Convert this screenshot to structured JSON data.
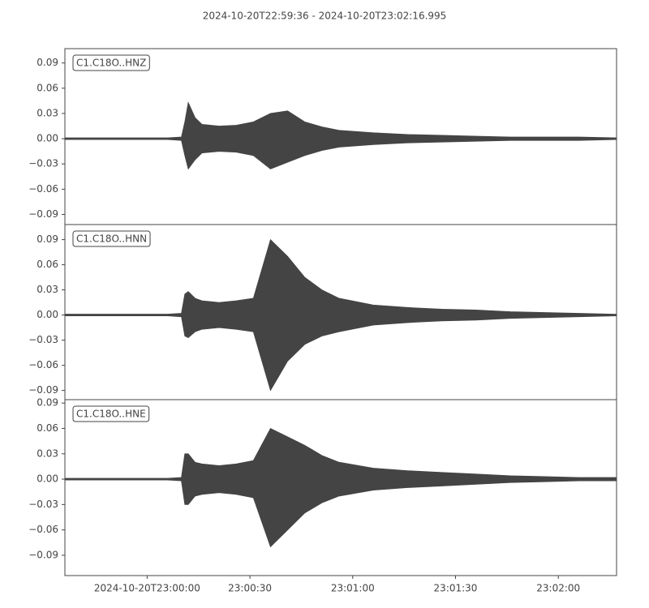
{
  "chart_data": [
    {
      "type": "band",
      "title": "2024-10-20T22:59:36  -  2024-10-20T23:02:16.995",
      "x": [
        "2024-10-20T22:59:36",
        "2024-10-20T23:00:06",
        "2024-10-20T23:00:10",
        "2024-10-20T23:00:11",
        "2024-10-20T23:00:12",
        "2024-10-20T23:00:14",
        "2024-10-20T23:00:16",
        "2024-10-20T23:00:21",
        "2024-10-20T23:00:26",
        "2024-10-20T23:00:31",
        "2024-10-20T23:00:36",
        "2024-10-20T23:00:41",
        "2024-10-20T23:00:46",
        "2024-10-20T23:00:51",
        "2024-10-20T23:00:56",
        "2024-10-20T23:01:06",
        "2024-10-20T23:01:16",
        "2024-10-20T23:01:26",
        "2024-10-20T23:01:36",
        "2024-10-20T23:01:46",
        "2024-10-20T23:01:56",
        "2024-10-20T23:02:06",
        "2024-10-20T23:02:16.995"
      ],
      "series": [
        {
          "name": "C1.C18O..HNZ",
          "color": "#444444",
          "values": [
            0.001,
            0.001,
            0.002,
            0.02,
            0.043,
            0.025,
            0.017,
            0.015,
            0.016,
            0.02,
            0.03,
            0.033,
            0.02,
            0.014,
            0.01,
            0.007,
            0.005,
            0.004,
            0.003,
            0.002,
            0.002,
            0.002,
            0.001
          ],
          "lower": [
            -0.001,
            -0.001,
            -0.002,
            -0.02,
            -0.036,
            -0.025,
            -0.017,
            -0.015,
            -0.016,
            -0.02,
            -0.036,
            -0.028,
            -0.02,
            -0.014,
            -0.01,
            -0.007,
            -0.005,
            -0.004,
            -0.003,
            -0.002,
            -0.002,
            -0.002,
            -0.001
          ]
        }
      ],
      "xlim": [
        "2024-10-20T22:59:36",
        "2024-10-20T23:02:16.995"
      ],
      "ylim": [
        -0.102,
        0.107
      ],
      "yticks": [
        0.09,
        0.06,
        0.03,
        {
          "value": 0,
          "label": "0.00"
        },
        {
          "value": -0.03,
          "label": "−0.03"
        },
        {
          "value": -0.06,
          "label": "−0.06"
        },
        {
          "value": -0.09,
          "label": "−0.09"
        }
      ]
    },
    {
      "type": "band",
      "x": [
        "2024-10-20T22:59:36",
        "2024-10-20T23:00:06",
        "2024-10-20T23:00:10",
        "2024-10-20T23:00:11",
        "2024-10-20T23:00:12",
        "2024-10-20T23:00:14",
        "2024-10-20T23:00:16",
        "2024-10-20T23:00:21",
        "2024-10-20T23:00:26",
        "2024-10-20T23:00:31",
        "2024-10-20T23:00:36",
        "2024-10-20T23:00:41",
        "2024-10-20T23:00:46",
        "2024-10-20T23:00:51",
        "2024-10-20T23:00:56",
        "2024-10-20T23:01:06",
        "2024-10-20T23:01:16",
        "2024-10-20T23:01:26",
        "2024-10-20T23:01:36",
        "2024-10-20T23:01:46",
        "2024-10-20T23:01:56",
        "2024-10-20T23:02:06",
        "2024-10-20T23:02:16.995"
      ],
      "series": [
        {
          "name": "C1.C18O..HNN",
          "color": "#444444",
          "values": [
            0.001,
            0.001,
            0.002,
            0.025,
            0.028,
            0.02,
            0.017,
            0.015,
            0.017,
            0.02,
            0.09,
            0.07,
            0.045,
            0.03,
            0.02,
            0.012,
            0.009,
            0.007,
            0.006,
            0.004,
            0.003,
            0.002,
            0.001
          ],
          "lower": [
            -0.001,
            -0.001,
            -0.002,
            -0.025,
            -0.027,
            -0.02,
            -0.017,
            -0.015,
            -0.017,
            -0.02,
            -0.09,
            -0.055,
            -0.035,
            -0.025,
            -0.02,
            -0.012,
            -0.009,
            -0.007,
            -0.006,
            -0.004,
            -0.003,
            -0.002,
            -0.001
          ]
        }
      ],
      "xlim": [
        "2024-10-20T22:59:36",
        "2024-10-20T23:02:16.995"
      ],
      "ylim": [
        -0.101,
        0.108
      ],
      "yticks": [
        0.09,
        0.06,
        0.03,
        {
          "value": 0,
          "label": "0.00"
        },
        {
          "value": -0.03,
          "label": "−0.03"
        },
        {
          "value": -0.06,
          "label": "−0.06"
        },
        {
          "value": -0.09,
          "label": "−0.09"
        }
      ]
    },
    {
      "type": "band",
      "x": [
        "2024-10-20T22:59:36",
        "2024-10-20T23:00:06",
        "2024-10-20T23:00:10",
        "2024-10-20T23:00:11",
        "2024-10-20T23:00:12",
        "2024-10-20T23:00:14",
        "2024-10-20T23:00:16",
        "2024-10-20T23:00:21",
        "2024-10-20T23:00:26",
        "2024-10-20T23:00:31",
        "2024-10-20T23:00:36",
        "2024-10-20T23:00:41",
        "2024-10-20T23:00:46",
        "2024-10-20T23:00:51",
        "2024-10-20T23:00:56",
        "2024-10-20T23:01:06",
        "2024-10-20T23:01:16",
        "2024-10-20T23:01:26",
        "2024-10-20T23:01:36",
        "2024-10-20T23:01:46",
        "2024-10-20T23:01:56",
        "2024-10-20T23:02:06",
        "2024-10-20T23:02:16.995"
      ],
      "series": [
        {
          "name": "C1.C18O..HNE",
          "color": "#444444",
          "values": [
            0.001,
            0.001,
            0.002,
            0.03,
            0.03,
            0.02,
            0.018,
            0.016,
            0.018,
            0.022,
            0.06,
            0.05,
            0.04,
            0.028,
            0.02,
            0.013,
            0.01,
            0.008,
            0.006,
            0.004,
            0.003,
            0.002,
            0.002
          ],
          "lower": [
            -0.001,
            -0.001,
            -0.002,
            -0.03,
            -0.03,
            -0.02,
            -0.018,
            -0.016,
            -0.018,
            -0.022,
            -0.08,
            -0.06,
            -0.04,
            -0.028,
            -0.02,
            -0.013,
            -0.01,
            -0.008,
            -0.006,
            -0.004,
            -0.003,
            -0.002,
            -0.002
          ]
        }
      ],
      "xlim": [
        "2024-10-20T22:59:36",
        "2024-10-20T23:02:16.995"
      ],
      "ylim": [
        -0.114,
        0.094
      ],
      "yticks": [
        0.09,
        0.06,
        0.03,
        {
          "value": 0,
          "label": "0.00"
        },
        {
          "value": -0.03,
          "label": "−0.03"
        },
        {
          "value": -0.06,
          "label": "−0.06"
        },
        {
          "value": -0.09,
          "label": "−0.09"
        }
      ],
      "xticks": [
        "2024-10-20T23:00:00",
        {
          "value": "2024-10-20T23:00:30",
          "label": "23:00:30"
        },
        {
          "value": "2024-10-20T23:01:00",
          "label": "23:01:00"
        },
        {
          "value": "2024-10-20T23:01:30",
          "label": "23:01:30"
        },
        {
          "value": "2024-10-20T23:02:00",
          "label": "23:02:00"
        }
      ]
    }
  ]
}
